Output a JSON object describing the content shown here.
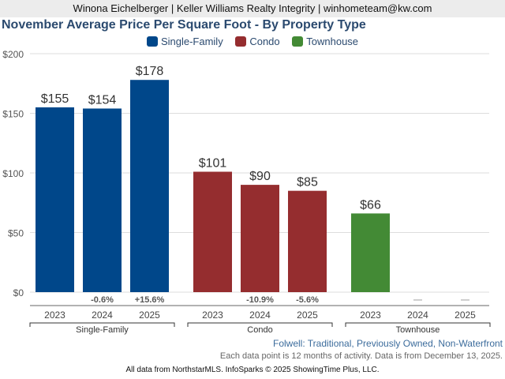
{
  "header": {
    "text": "Winona Eichelberger | Keller Williams Realty Integrity | winhometeam@kw.com"
  },
  "chart_data": {
    "type": "bar",
    "title": "November Average Price Per Square Foot - By Property Type",
    "xlabel": "",
    "ylabel": "",
    "ylim": [
      0,
      200
    ],
    "yticks": [
      0,
      50,
      100,
      150,
      200
    ],
    "ytick_labels": [
      "$0",
      "$50",
      "$100",
      "$150",
      "$200"
    ],
    "grid": true,
    "legend_placement": "top-center",
    "legend": [
      {
        "name": "Single-Family",
        "color": "#00478a"
      },
      {
        "name": "Condo",
        "color": "#952d2f"
      },
      {
        "name": "Townhouse",
        "color": "#438a35"
      }
    ],
    "groups": [
      {
        "name": "Single-Family",
        "color": "#00478a",
        "categories": [
          "2023",
          "2024",
          "2025"
        ],
        "values": [
          155,
          154,
          178
        ],
        "value_labels": [
          "$155",
          "$154",
          "$178"
        ],
        "changes": [
          "",
          "-0.6%",
          "+15.6%"
        ]
      },
      {
        "name": "Condo",
        "color": "#952d2f",
        "categories": [
          "2023",
          "2024",
          "2025"
        ],
        "values": [
          101,
          90,
          85
        ],
        "value_labels": [
          "$101",
          "$90",
          "$85"
        ],
        "changes": [
          "",
          "-10.9%",
          "-5.6%"
        ]
      },
      {
        "name": "Townhouse",
        "color": "#438a35",
        "categories": [
          "2023",
          "2024",
          "2025"
        ],
        "values": [
          66,
          null,
          null
        ],
        "value_labels": [
          "$66",
          "",
          ""
        ],
        "changes": [
          "",
          "—",
          "—"
        ]
      }
    ]
  },
  "notes": {
    "subtitle": "Folwell: Traditional, Previously Owned, Non-Waterfront",
    "data_note": "Each data point is 12 months of activity. Data is from December 13, 2025."
  },
  "footer": {
    "text": "All data from NorthstarMLS. InfoSparks © 2025 ShowingTime Plus, LLC."
  }
}
